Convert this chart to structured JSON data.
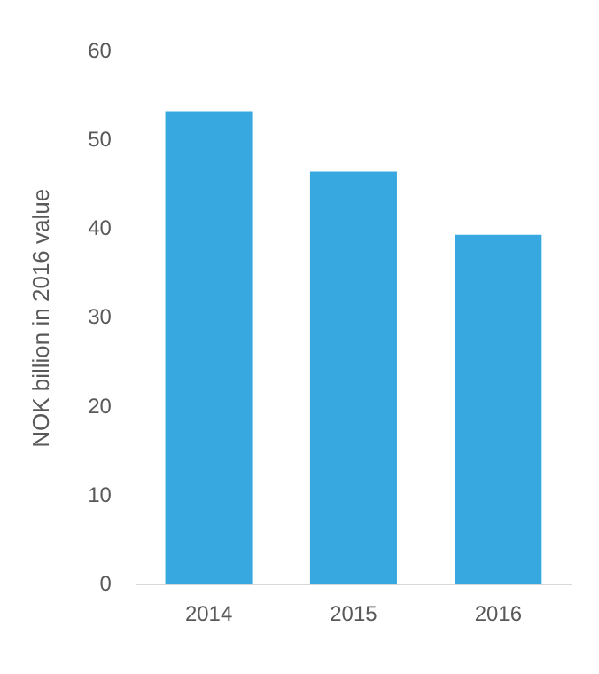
{
  "chart_data": {
    "type": "bar",
    "ylabel": "NOK billion in 2016 value",
    "categories": [
      "2014",
      "2015",
      "2016"
    ],
    "values": [
      53.3,
      46.5,
      39.4
    ],
    "color": "#38a9e0",
    "ylim": [
      0,
      60
    ],
    "yticks": [
      0,
      10,
      20,
      30,
      40,
      50,
      60
    ],
    "grid": false,
    "legend": false
  }
}
